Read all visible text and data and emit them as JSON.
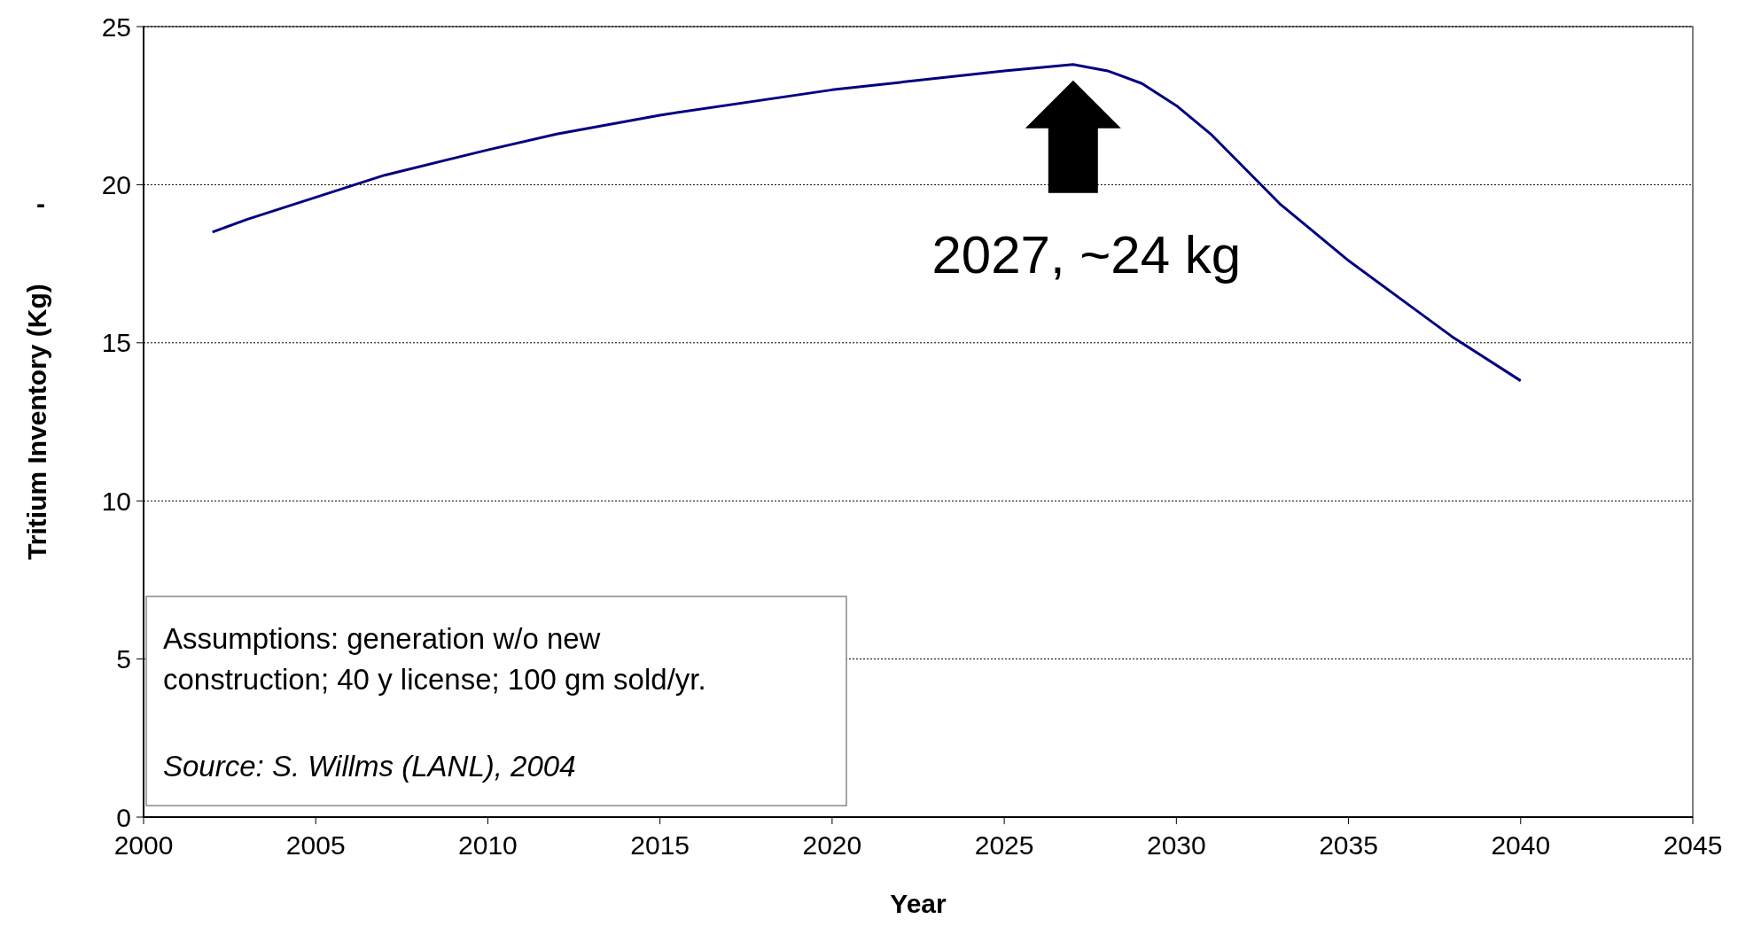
{
  "chart_data": {
    "type": "line",
    "xlabel": "Year",
    "ylabel": "Tritium Inventory (Kg)",
    "x": [
      2002,
      2003,
      2005,
      2007,
      2010,
      2012,
      2015,
      2020,
      2025,
      2027,
      2028,
      2029,
      2030,
      2031,
      2032,
      2033,
      2035,
      2037,
      2038,
      2040
    ],
    "series": [
      {
        "color": "#000080",
        "values": [
          18.5,
          18.9,
          19.6,
          20.3,
          21.1,
          21.6,
          22.2,
          23.0,
          23.6,
          23.8,
          23.6,
          23.2,
          22.5,
          21.6,
          20.5,
          19.4,
          17.6,
          16.0,
          15.2,
          13.8
        ]
      }
    ],
    "xlim": [
      2000,
      2045
    ],
    "xticks": [
      2000,
      2005,
      2010,
      2015,
      2020,
      2025,
      2030,
      2035,
      2040,
      2045
    ],
    "ylim": [
      0,
      25
    ],
    "yticks": [
      0,
      5,
      10,
      15,
      20,
      25
    ],
    "grid": "y",
    "marker": "none",
    "line_style": "solid",
    "annotations": [
      "2027, ~24 kg",
      "Assumptions: generation w/o new construction; 40 y license; 100 gm sold/yr.",
      "Source: S. Willms (LANL), 2004",
      "-"
    ]
  }
}
